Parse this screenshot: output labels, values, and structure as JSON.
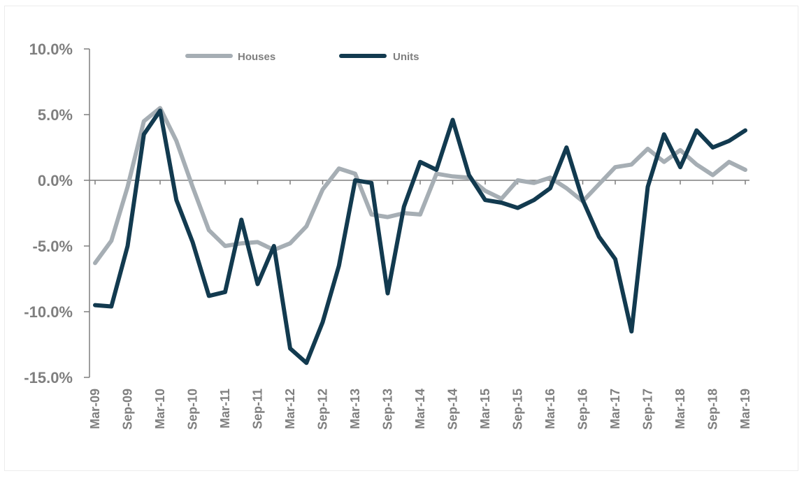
{
  "chart_data": {
    "type": "line",
    "title": "",
    "xlabel": "",
    "ylabel": "",
    "ylim": [
      -15.0,
      10.0
    ],
    "y_ticks": [
      "10.0%",
      "5.0%",
      "0.0%",
      "-5.0%",
      "-10.0%",
      "-15.0%"
    ],
    "y_tick_values": [
      10,
      5,
      0,
      -5,
      -10,
      -15
    ],
    "x_ticks": [
      "Mar-09",
      "Sep-09",
      "Mar-10",
      "Sep-10",
      "Mar-11",
      "Sep-11",
      "Mar-12",
      "Sep-12",
      "Mar-13",
      "Sep-13",
      "Mar-14",
      "Sep-14",
      "Mar-15",
      "Sep-15",
      "Mar-16",
      "Sep-16",
      "Mar-17",
      "Sep-17",
      "Mar-18",
      "Sep-18",
      "Mar-19"
    ],
    "x_start": "Mar-09",
    "x_end": "Mar-19",
    "legend_position": "top-center",
    "grid": false,
    "series": [
      {
        "name": "Houses",
        "color": "#a6aeb4",
        "values": [
          [
            "Mar-09",
            -6.3
          ],
          [
            "Jun-09",
            -4.6
          ],
          [
            "Sep-09",
            -0.5
          ],
          [
            "Dec-09",
            4.5
          ],
          [
            "Mar-10",
            5.5
          ],
          [
            "Jun-10",
            3.0
          ],
          [
            "Sep-10",
            -0.5
          ],
          [
            "Dec-10",
            -3.8
          ],
          [
            "Mar-11",
            -5.0
          ],
          [
            "Jun-11",
            -4.8
          ],
          [
            "Sep-11",
            -4.7
          ],
          [
            "Dec-11",
            -5.3
          ],
          [
            "Mar-12",
            -4.8
          ],
          [
            "Jun-12",
            -3.5
          ],
          [
            "Sep-12",
            -0.7
          ],
          [
            "Dec-12",
            0.9
          ],
          [
            "Mar-13",
            0.5
          ],
          [
            "Jun-13",
            -2.6
          ],
          [
            "Sep-13",
            -2.8
          ],
          [
            "Dec-13",
            -2.5
          ],
          [
            "Mar-14",
            -2.6
          ],
          [
            "Jun-14",
            0.5
          ],
          [
            "Sep-14",
            0.3
          ],
          [
            "Dec-14",
            0.2
          ],
          [
            "Mar-15",
            -0.8
          ],
          [
            "Jun-15",
            -1.4
          ],
          [
            "Sep-15",
            0.0
          ],
          [
            "Dec-15",
            -0.2
          ],
          [
            "Mar-16",
            0.2
          ],
          [
            "Jun-16",
            -0.6
          ],
          [
            "Sep-16",
            -1.6
          ],
          [
            "Dec-16",
            -0.3
          ],
          [
            "Mar-17",
            1.0
          ],
          [
            "Jun-17",
            1.2
          ],
          [
            "Sep-17",
            2.4
          ],
          [
            "Dec-17",
            1.4
          ],
          [
            "Mar-18",
            2.3
          ],
          [
            "Jun-18",
            1.2
          ],
          [
            "Sep-18",
            0.4
          ],
          [
            "Dec-18",
            1.4
          ],
          [
            "Mar-19",
            0.8
          ]
        ]
      },
      {
        "name": "Units",
        "color": "#123a4f",
        "values": [
          [
            "Mar-09",
            -9.5
          ],
          [
            "Jun-09",
            -9.6
          ],
          [
            "Sep-09",
            -5.0
          ],
          [
            "Dec-09",
            3.5
          ],
          [
            "Mar-10",
            5.3
          ],
          [
            "Jun-10",
            -1.5
          ],
          [
            "Sep-10",
            -4.7
          ],
          [
            "Dec-10",
            -8.8
          ],
          [
            "Mar-11",
            -8.5
          ],
          [
            "Jun-11",
            -3.0
          ],
          [
            "Sep-11",
            -7.9
          ],
          [
            "Dec-11",
            -5.0
          ],
          [
            "Mar-12",
            -12.8
          ],
          [
            "Jun-12",
            -13.9
          ],
          [
            "Sep-12",
            -10.8
          ],
          [
            "Dec-12",
            -6.5
          ],
          [
            "Mar-13",
            0.0
          ],
          [
            "Jun-13",
            -0.2
          ],
          [
            "Sep-13",
            -8.6
          ],
          [
            "Dec-13",
            -2.0
          ],
          [
            "Mar-14",
            1.4
          ],
          [
            "Jun-14",
            0.8
          ],
          [
            "Sep-14",
            4.6
          ],
          [
            "Dec-14",
            0.4
          ],
          [
            "Mar-15",
            -1.5
          ],
          [
            "Jun-15",
            -1.7
          ],
          [
            "Sep-15",
            -2.1
          ],
          [
            "Dec-15",
            -1.5
          ],
          [
            "Mar-16",
            -0.6
          ],
          [
            "Jun-16",
            2.5
          ],
          [
            "Sep-16",
            -1.5
          ],
          [
            "Dec-16",
            -4.3
          ],
          [
            "Mar-17",
            -6.0
          ],
          [
            "Jun-17",
            -11.5
          ],
          [
            "Sep-17",
            -0.5
          ],
          [
            "Dec-17",
            3.5
          ],
          [
            "Mar-18",
            1.0
          ],
          [
            "Jun-18",
            3.8
          ],
          [
            "Sep-18",
            2.5
          ],
          [
            "Dec-18",
            3.0
          ],
          [
            "Mar-19",
            3.8
          ]
        ]
      }
    ]
  }
}
